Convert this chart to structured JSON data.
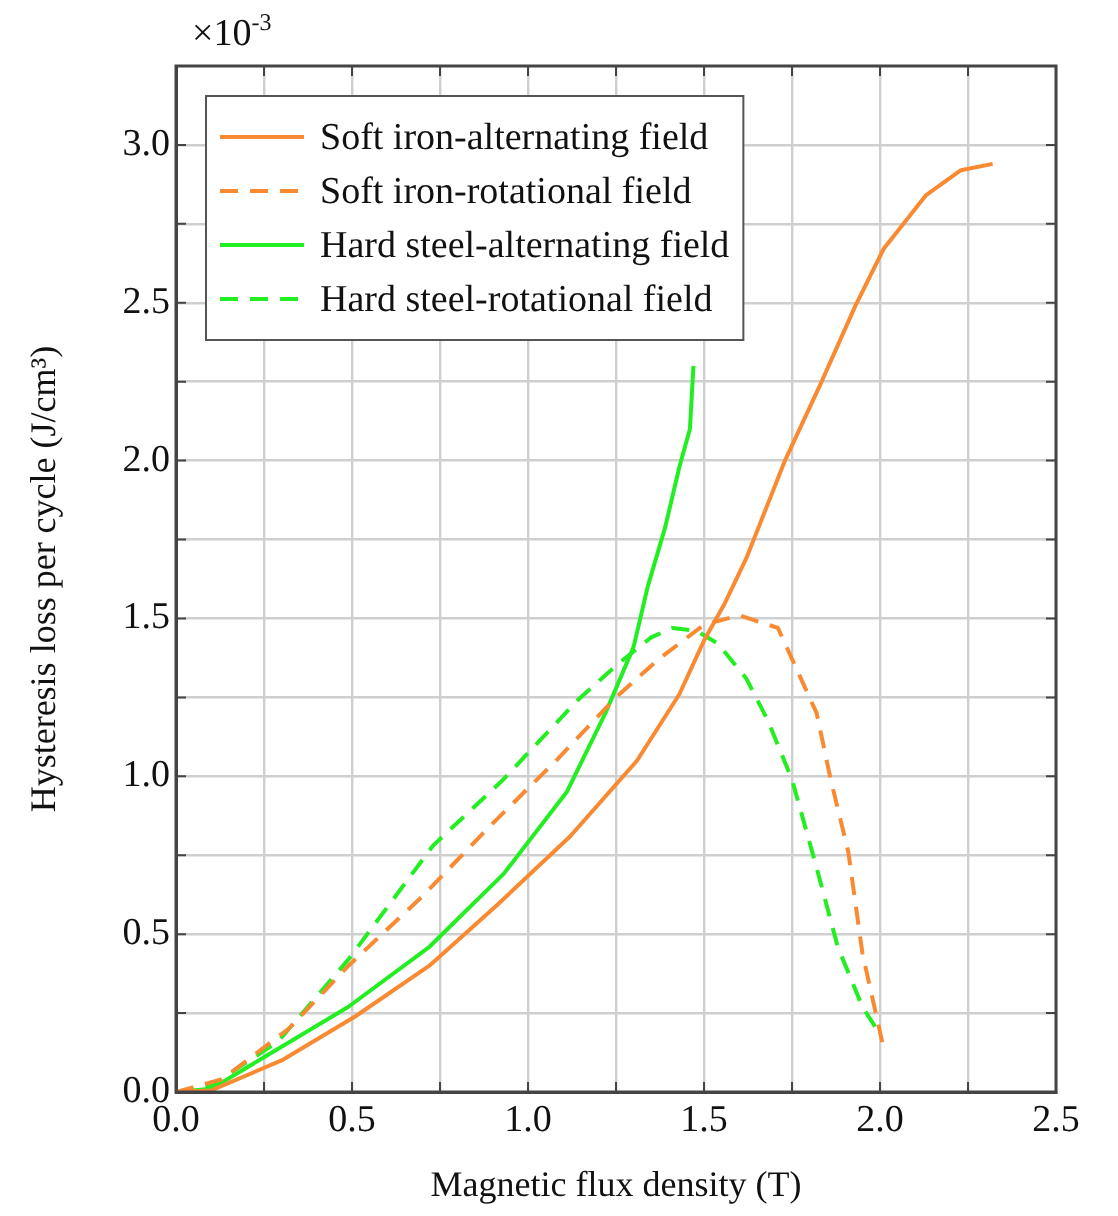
{
  "chart_data": {
    "type": "line",
    "xlabel": "Magnetic flux density (T)",
    "ylabel": "Hysteresis loss per cycle (J/cm³)",
    "annotations": [
      "×10$^{-3}$"
    ],
    "xlim": [
      0,
      2.5
    ],
    "ylim": [
      0,
      3.25
    ],
    "xticks": [
      {
        "value": 0,
        "label": "0.0"
      },
      {
        "value": 0.25,
        "label": null
      },
      {
        "value": 0.5,
        "label": "0.5"
      },
      {
        "value": 0.75,
        "label": null
      },
      {
        "value": 1,
        "label": "1.0"
      },
      {
        "value": 1.25,
        "label": null
      },
      {
        "value": 1.5,
        "label": "1.5"
      },
      {
        "value": 1.75,
        "label": null
      },
      {
        "value": 2,
        "label": "2.0"
      },
      {
        "value": 2.25,
        "label": null
      },
      {
        "value": 2.5,
        "label": "2.5"
      }
    ],
    "yticks": [
      {
        "value": 0,
        "label": "0.0"
      },
      {
        "value": 0.25,
        "label": null
      },
      {
        "value": 0.5,
        "label": "0.5"
      },
      {
        "value": 0.75,
        "label": null
      },
      {
        "value": 1,
        "label": "1.0"
      },
      {
        "value": 1.25,
        "label": null
      },
      {
        "value": 1.5,
        "label": "1.5"
      },
      {
        "value": 1.75,
        "label": null
      },
      {
        "value": 2,
        "label": "2.0"
      },
      {
        "value": 2.25,
        "label": null
      },
      {
        "value": 2.5,
        "label": "2.5"
      },
      {
        "value": 2.75,
        "label": null
      },
      {
        "value": 3,
        "label": "3.0"
      }
    ],
    "grid": true,
    "legend": "top left",
    "series": [
      {
        "name": "Soft iron-alternating field",
        "color": "#fa8a32",
        "line_style": "solid",
        "x": [
          0,
          0.1,
          0.3,
          0.51,
          0.72,
          0.91,
          1.12,
          1.31,
          1.43,
          1.5,
          1.56,
          1.62,
          1.73,
          1.83,
          1.93,
          2.01,
          2.13,
          2.23,
          2.32
        ],
        "values": [
          0,
          0.005,
          0.1,
          0.24,
          0.4,
          0.59,
          0.81,
          1.05,
          1.26,
          1.43,
          1.55,
          1.69,
          2.0,
          2.24,
          2.49,
          2.67,
          2.84,
          2.92,
          2.94
        ]
      },
      {
        "name": "Soft iron-rotational field",
        "color": "#fa8a32",
        "line_style": "dashed",
        "x": [
          0,
          0.13,
          0.32,
          0.49,
          0.7,
          0.89,
          1.08,
          1.25,
          1.37,
          1.5,
          1.6,
          1.71,
          1.82,
          1.86,
          1.91,
          1.95,
          1.99,
          2.01
        ],
        "values": [
          0,
          0.04,
          0.2,
          0.4,
          0.62,
          0.84,
          1.05,
          1.25,
          1.37,
          1.48,
          1.51,
          1.47,
          1.2,
          0.99,
          0.76,
          0.44,
          0.24,
          0.14
        ]
      },
      {
        "name": "Hard steel-alternating field",
        "color": "#22ee22",
        "line_style": "solid",
        "x": [
          0,
          0.1,
          0.25,
          0.49,
          0.72,
          0.93,
          1.11,
          1.22,
          1.3,
          1.34,
          1.39,
          1.43,
          1.46,
          1.47
        ],
        "values": [
          0,
          0.01,
          0.11,
          0.27,
          0.46,
          0.69,
          0.95,
          1.2,
          1.41,
          1.6,
          1.79,
          1.98,
          2.1,
          2.3
        ]
      },
      {
        "name": "Hard steel-rotational field",
        "color": "#22ee22",
        "line_style": "dashed",
        "x": [
          0,
          0.1,
          0.29,
          0.49,
          0.73,
          0.93,
          1.14,
          1.26,
          1.35,
          1.41,
          1.48,
          1.54,
          1.62,
          1.68,
          1.75,
          1.82,
          1.88,
          1.95,
          1.99
        ],
        "values": [
          0,
          0.02,
          0.16,
          0.42,
          0.78,
          0.99,
          1.24,
          1.36,
          1.44,
          1.47,
          1.46,
          1.42,
          1.31,
          1.18,
          0.99,
          0.71,
          0.46,
          0.27,
          0.2
        ]
      }
    ]
  }
}
